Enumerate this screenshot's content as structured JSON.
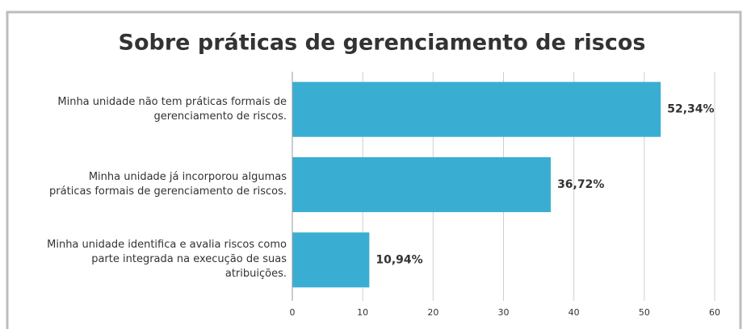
{
  "chart_data": {
    "type": "barh",
    "title": "Sobre práticas de gerenciamento de riscos",
    "categories": [
      "Minha unidade não tem práticas formais de gerenciamento de riscos.",
      "Minha unidade já incorporou algumas práticas formais de gerenciamento de riscos.",
      "Minha unidade identifica e avalia riscos como parte integrada na execução de suas atribuições."
    ],
    "values": [
      52.34,
      36.72,
      10.94
    ],
    "value_labels": [
      "52,34%",
      "36,72%",
      "10,94%"
    ],
    "color": "#3aaed2",
    "xlim": [
      0,
      60
    ],
    "xticks": [
      0,
      10,
      20,
      30,
      40,
      50,
      60
    ],
    "grid": true
  }
}
